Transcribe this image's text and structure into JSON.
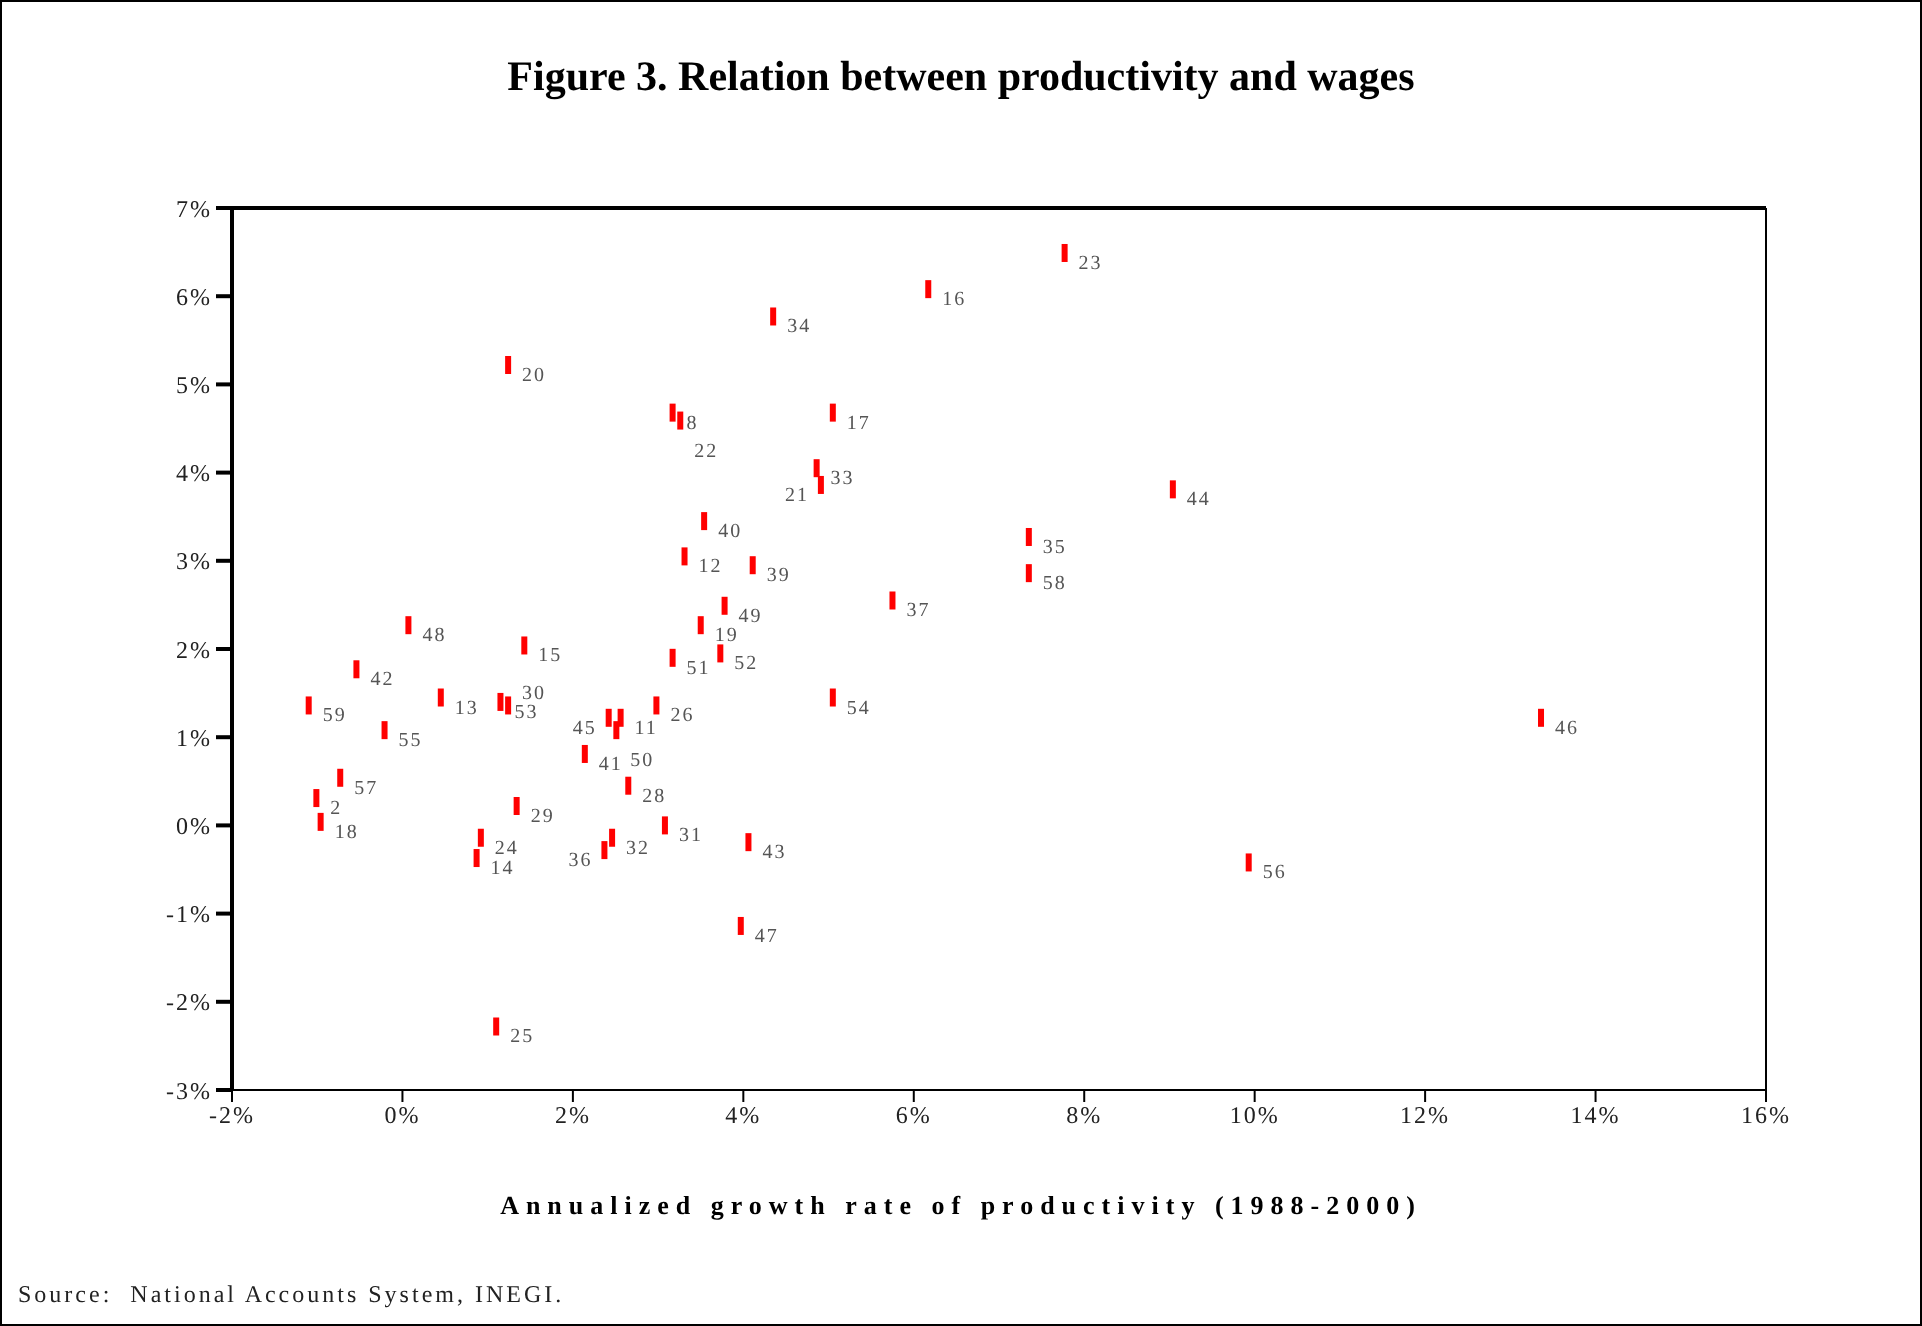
{
  "chart_data": {
    "type": "scatter",
    "title": "Figure 3. Relation between productivity and wages",
    "xlabel": "Annualized growth rate of productivity (1988-2000)",
    "x": [
      4.35,
      1.24,
      3.17,
      3.26,
      3.54,
      3.31,
      4.11,
      3.78,
      0.07,
      7.77,
      6.17,
      5.05,
      4.86,
      4.91,
      9.04,
      7.35,
      7.35,
      5.75,
      3.5,
      3.73,
      3.17,
      1.43,
      -0.54,
      0.45,
      -1.1,
      1.15,
      1.24,
      -0.21,
      2.42,
      2.56,
      2.51,
      2.98,
      2.14,
      -0.73,
      2.65,
      -1.01,
      -0.96,
      1.34,
      3.08,
      0.92,
      0.87,
      2.46,
      2.37,
      4.06,
      3.97,
      1.1,
      5.05,
      13.36,
      9.93
    ],
    "series": [
      {
        "color": "#ff0000",
        "values": [
          5.77,
          5.22,
          4.68,
          4.59,
          3.45,
          3.05,
          2.95,
          2.49,
          2.27,
          6.49,
          6.08,
          4.68,
          4.05,
          3.86,
          3.81,
          3.27,
          2.86,
          2.55,
          2.27,
          1.95,
          1.9,
          2.04,
          1.77,
          1.45,
          1.36,
          1.4,
          1.36,
          1.08,
          1.22,
          1.22,
          1.08,
          1.36,
          0.81,
          0.54,
          0.45,
          0.31,
          0.04,
          0.22,
          0.0,
          -0.14,
          -0.37,
          -0.14,
          -0.28,
          -0.19,
          -1.14,
          -2.28,
          1.45,
          1.22,
          -0.42
        ]
      }
    ],
    "annotations": [
      {
        "text": "34",
        "x": 4.35,
        "y": 5.77
      },
      {
        "text": "20",
        "x": 1.24,
        "y": 5.22
      },
      {
        "text": "8",
        "x": 3.17,
        "y": 4.68
      },
      {
        "text": "22",
        "x": 3.26,
        "y": 4.59
      },
      {
        "text": "40",
        "x": 3.54,
        "y": 3.45
      },
      {
        "text": "12",
        "x": 3.31,
        "y": 3.05
      },
      {
        "text": "39",
        "x": 4.11,
        "y": 2.95
      },
      {
        "text": "49",
        "x": 3.78,
        "y": 2.49
      },
      {
        "text": "48",
        "x": 0.07,
        "y": 2.27
      },
      {
        "text": "23",
        "x": 7.77,
        "y": 6.49
      },
      {
        "text": "16",
        "x": 6.17,
        "y": 6.08
      },
      {
        "text": "17",
        "x": 5.05,
        "y": 4.68
      },
      {
        "text": "33",
        "x": 4.86,
        "y": 4.05
      },
      {
        "text": "21",
        "x": 4.91,
        "y": 3.86
      },
      {
        "text": "44",
        "x": 9.04,
        "y": 3.81
      },
      {
        "text": "35",
        "x": 7.35,
        "y": 3.27
      },
      {
        "text": "58",
        "x": 7.35,
        "y": 2.86
      },
      {
        "text": "37",
        "x": 5.75,
        "y": 2.55
      },
      {
        "text": "19",
        "x": 3.5,
        "y": 2.27
      },
      {
        "text": "52",
        "x": 3.73,
        "y": 1.95
      },
      {
        "text": "51",
        "x": 3.17,
        "y": 1.9
      },
      {
        "text": "15",
        "x": 1.43,
        "y": 2.04
      },
      {
        "text": "42",
        "x": -0.54,
        "y": 1.77
      },
      {
        "text": "13",
        "x": 0.45,
        "y": 1.45
      },
      {
        "text": "59",
        "x": -1.1,
        "y": 1.36
      },
      {
        "text": "53",
        "x": 1.15,
        "y": 1.4
      },
      {
        "text": "30",
        "x": 1.24,
        "y": 1.36
      },
      {
        "text": "55",
        "x": -0.21,
        "y": 1.08
      },
      {
        "text": "45",
        "x": 2.42,
        "y": 1.22
      },
      {
        "text": "11",
        "x": 2.56,
        "y": 1.22
      },
      {
        "text": "50",
        "x": 2.51,
        "y": 1.08
      },
      {
        "text": "26",
        "x": 2.98,
        "y": 1.36
      },
      {
        "text": "41",
        "x": 2.14,
        "y": 0.81
      },
      {
        "text": "57",
        "x": -0.73,
        "y": 0.54
      },
      {
        "text": "28",
        "x": 2.65,
        "y": 0.45
      },
      {
        "text": "2",
        "x": -1.01,
        "y": 0.31
      },
      {
        "text": "18",
        "x": -0.96,
        "y": 0.04
      },
      {
        "text": "29",
        "x": 1.34,
        "y": 0.22
      },
      {
        "text": "31",
        "x": 3.08,
        "y": 0.0
      },
      {
        "text": "24",
        "x": 0.92,
        "y": -0.14
      },
      {
        "text": "14",
        "x": 0.87,
        "y": -0.37
      },
      {
        "text": "32",
        "x": 2.46,
        "y": -0.14
      },
      {
        "text": "36",
        "x": 2.37,
        "y": -0.28
      },
      {
        "text": "43",
        "x": 4.06,
        "y": -0.19
      },
      {
        "text": "47",
        "x": 3.97,
        "y": -1.14
      },
      {
        "text": "25",
        "x": 1.1,
        "y": -2.28
      },
      {
        "text": "54",
        "x": 5.05,
        "y": 1.45
      },
      {
        "text": "46",
        "x": 13.36,
        "y": 1.22
      },
      {
        "text": "56",
        "x": 9.93,
        "y": -0.42
      },
      "Source:  National Accounts System, INEGI."
    ],
    "xlim": [
      -2,
      16
    ],
    "xticks": [
      {
        "value": -2,
        "label": "-2%"
      },
      {
        "value": 0,
        "label": "0%"
      },
      {
        "value": 2,
        "label": "2%"
      },
      {
        "value": 4,
        "label": "4%"
      },
      {
        "value": 6,
        "label": "6%"
      },
      {
        "value": 8,
        "label": "8%"
      },
      {
        "value": 10,
        "label": "10%"
      },
      {
        "value": 12,
        "label": "12%"
      },
      {
        "value": 14,
        "label": "14%"
      },
      {
        "value": 16,
        "label": "16%"
      }
    ],
    "ylim": [
      -3,
      7
    ],
    "yticks": [
      {
        "value": -3,
        "label": "-3%"
      },
      {
        "value": -2,
        "label": "-2%"
      },
      {
        "value": -1,
        "label": "-1%"
      },
      {
        "value": 0,
        "label": "0%"
      },
      {
        "value": 1,
        "label": "1%"
      },
      {
        "value": 2,
        "label": "2%"
      },
      {
        "value": 3,
        "label": "3%"
      },
      {
        "value": 4,
        "label": "4%"
      },
      {
        "value": 5,
        "label": "5%"
      },
      {
        "value": 6,
        "label": "6%"
      },
      {
        "value": 7,
        "label": "7%"
      }
    ],
    "legend": false
  }
}
